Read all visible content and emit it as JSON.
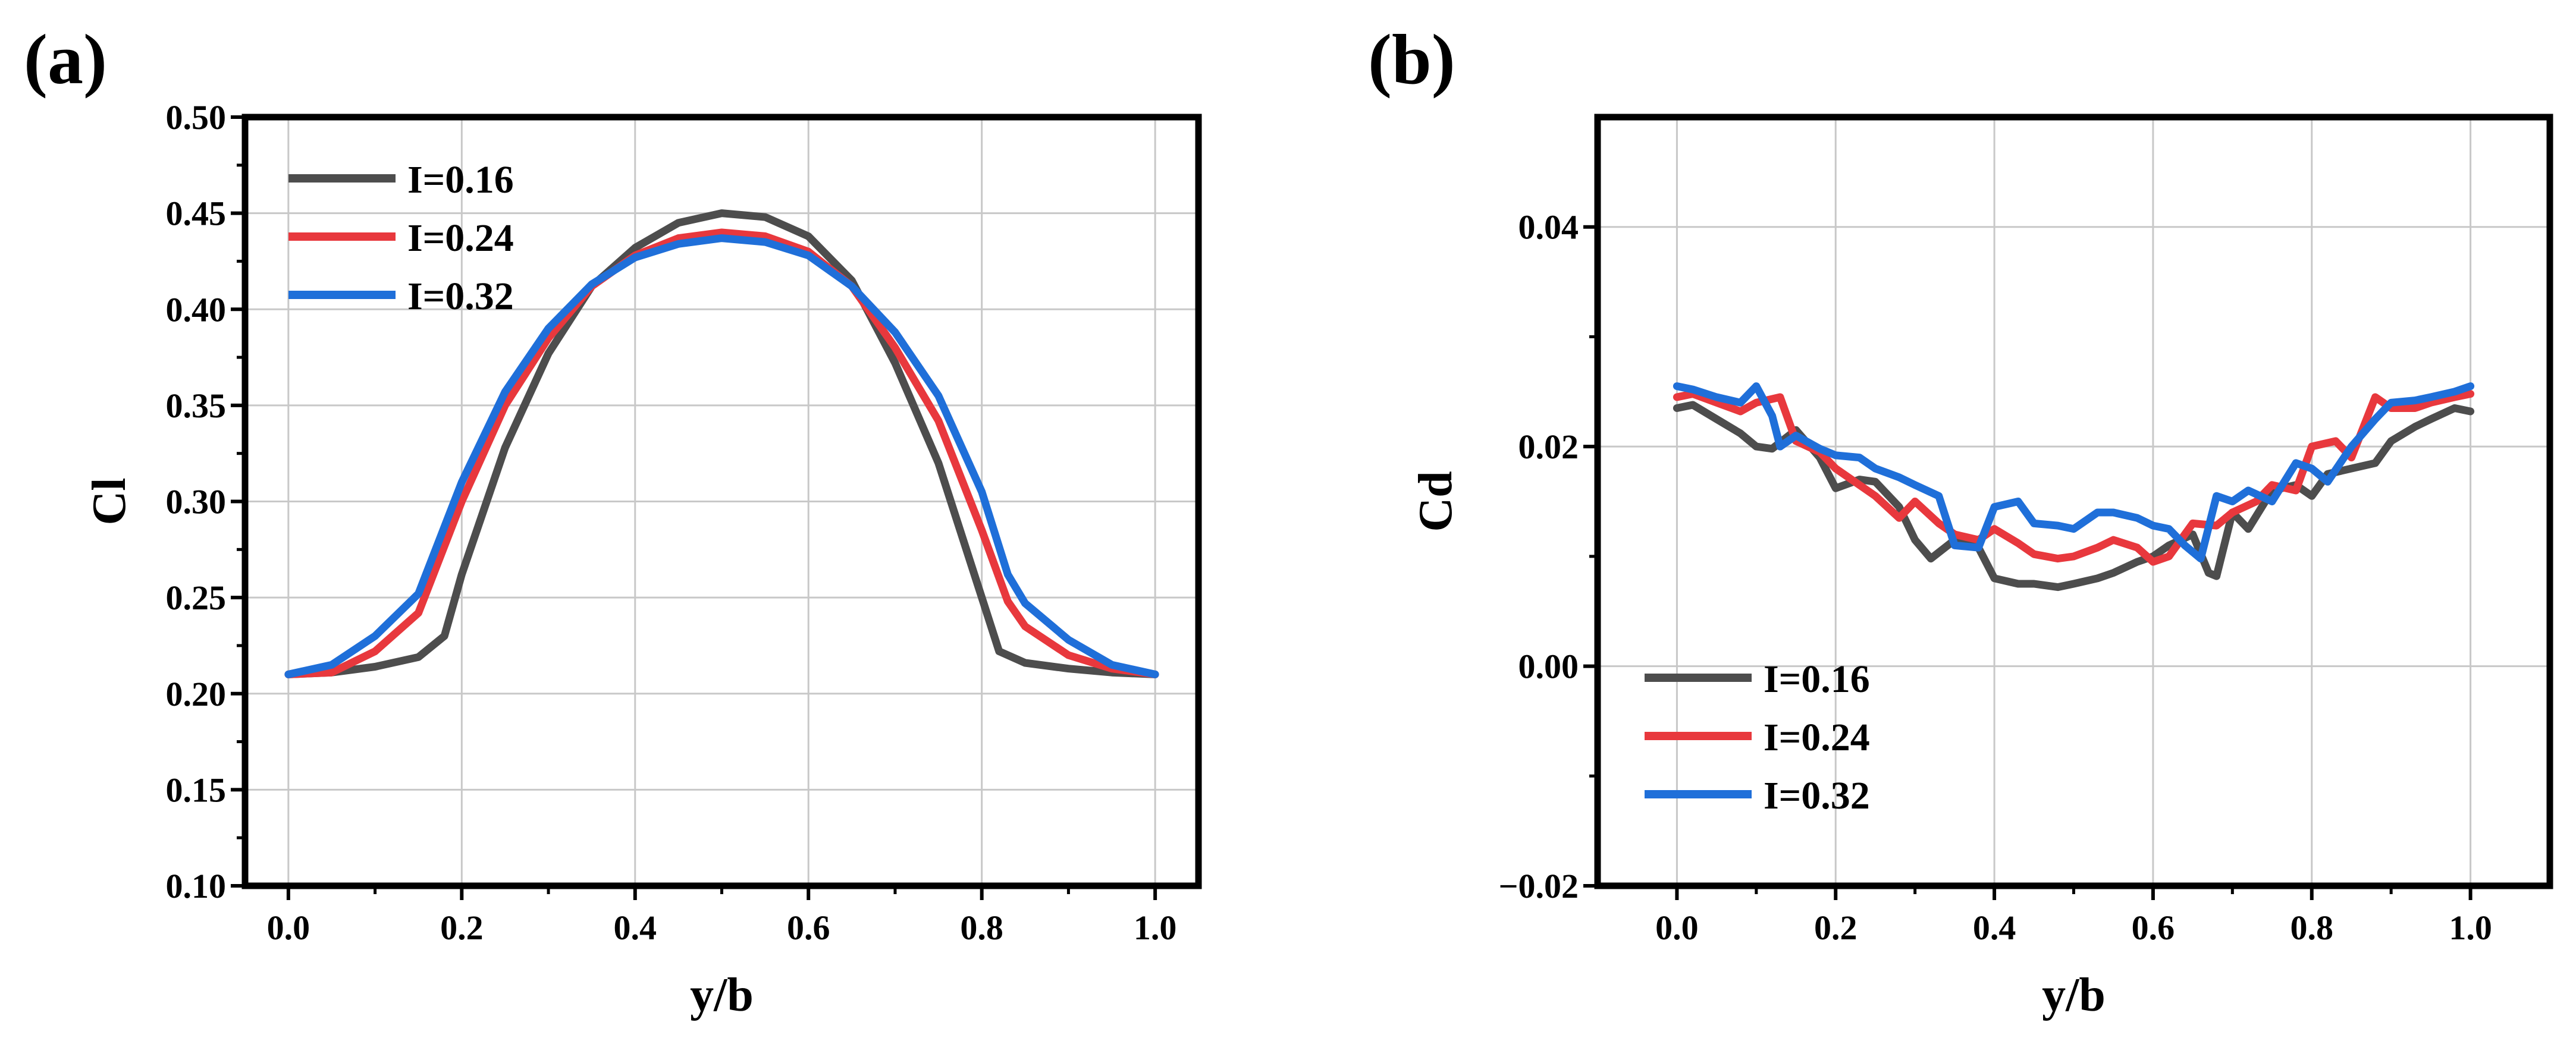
{
  "chart_data": [
    {
      "type": "line",
      "panel_label": "(a)",
      "xlabel": "y/b",
      "ylabel": "Cl",
      "xlim": [
        -0.05,
        1.05
      ],
      "ylim": [
        0.1,
        0.5
      ],
      "xticks": [
        0.0,
        0.2,
        0.4,
        0.6,
        0.8,
        1.0
      ],
      "xtick_labels": [
        "0.0",
        "0.2",
        "0.4",
        "0.6",
        "0.8",
        "1.0"
      ],
      "yticks": [
        0.1,
        0.15,
        0.2,
        0.25,
        0.3,
        0.35,
        0.4,
        0.45,
        0.5
      ],
      "ytick_labels": [
        "0.10",
        "0.15",
        "0.20",
        "0.25",
        "0.30",
        "0.35",
        "0.40",
        "0.45",
        "0.50"
      ],
      "grid": true,
      "legend_position": "top-left",
      "series": [
        {
          "name": "I=0.16",
          "color": "#4d4d4d",
          "x": [
            0.0,
            0.05,
            0.1,
            0.15,
            0.18,
            0.2,
            0.25,
            0.3,
            0.35,
            0.4,
            0.45,
            0.5,
            0.55,
            0.6,
            0.65,
            0.7,
            0.75,
            0.8,
            0.82,
            0.85,
            0.9,
            0.95,
            1.0
          ],
          "y": [
            0.21,
            0.211,
            0.214,
            0.219,
            0.23,
            0.262,
            0.328,
            0.377,
            0.412,
            0.432,
            0.445,
            0.45,
            0.448,
            0.438,
            0.415,
            0.372,
            0.32,
            0.25,
            0.222,
            0.216,
            0.213,
            0.211,
            0.21
          ]
        },
        {
          "name": "I=0.24",
          "color": "#e8383d",
          "x": [
            0.0,
            0.05,
            0.1,
            0.15,
            0.2,
            0.25,
            0.3,
            0.35,
            0.4,
            0.45,
            0.5,
            0.55,
            0.6,
            0.65,
            0.7,
            0.75,
            0.8,
            0.83,
            0.85,
            0.9,
            0.95,
            1.0
          ],
          "y": [
            0.21,
            0.211,
            0.222,
            0.242,
            0.3,
            0.35,
            0.385,
            0.412,
            0.428,
            0.437,
            0.44,
            0.438,
            0.43,
            0.412,
            0.38,
            0.342,
            0.285,
            0.248,
            0.235,
            0.22,
            0.213,
            0.21
          ]
        },
        {
          "name": "I=0.32",
          "color": "#1f6fd9",
          "x": [
            0.0,
            0.05,
            0.1,
            0.15,
            0.2,
            0.25,
            0.3,
            0.35,
            0.4,
            0.45,
            0.5,
            0.55,
            0.6,
            0.65,
            0.7,
            0.75,
            0.8,
            0.83,
            0.85,
            0.9,
            0.95,
            1.0
          ],
          "y": [
            0.21,
            0.215,
            0.23,
            0.252,
            0.31,
            0.357,
            0.39,
            0.413,
            0.427,
            0.434,
            0.437,
            0.435,
            0.428,
            0.412,
            0.388,
            0.355,
            0.305,
            0.262,
            0.247,
            0.228,
            0.215,
            0.21
          ]
        }
      ]
    },
    {
      "type": "line",
      "panel_label": "(b)",
      "xlabel": "y/b",
      "ylabel": "Cd",
      "xlim": [
        -0.1,
        1.1
      ],
      "ylim": [
        -0.02,
        0.05
      ],
      "xticks": [
        0.0,
        0.2,
        0.4,
        0.6,
        0.8,
        1.0
      ],
      "xtick_labels": [
        "0.0",
        "0.2",
        "0.4",
        "0.6",
        "0.8",
        "1.0"
      ],
      "yticks": [
        -0.02,
        0.0,
        0.02,
        0.04
      ],
      "ytick_labels": [
        "−0.02",
        "0.00",
        "0.02",
        "0.04"
      ],
      "grid": true,
      "legend_position": "bottom-left",
      "series": [
        {
          "name": "I=0.16",
          "color": "#4d4d4d",
          "x": [
            0.0,
            0.02,
            0.05,
            0.08,
            0.1,
            0.12,
            0.15,
            0.18,
            0.2,
            0.23,
            0.25,
            0.28,
            0.3,
            0.32,
            0.35,
            0.38,
            0.4,
            0.43,
            0.45,
            0.48,
            0.5,
            0.53,
            0.55,
            0.58,
            0.6,
            0.62,
            0.65,
            0.67,
            0.68,
            0.7,
            0.72,
            0.75,
            0.78,
            0.8,
            0.82,
            0.85,
            0.88,
            0.9,
            0.93,
            0.95,
            0.98,
            1.0
          ],
          "y": [
            0.0235,
            0.0238,
            0.0225,
            0.0212,
            0.02,
            0.0198,
            0.0215,
            0.019,
            0.0162,
            0.017,
            0.0168,
            0.0145,
            0.0115,
            0.0098,
            0.0115,
            0.0108,
            0.008,
            0.0075,
            0.0075,
            0.0072,
            0.0075,
            0.008,
            0.0085,
            0.0095,
            0.01,
            0.011,
            0.012,
            0.0085,
            0.0082,
            0.014,
            0.0125,
            0.016,
            0.0165,
            0.0155,
            0.0175,
            0.018,
            0.0185,
            0.0205,
            0.0218,
            0.0225,
            0.0235,
            0.0232
          ]
        },
        {
          "name": "I=0.24",
          "color": "#e8383d",
          "x": [
            0.0,
            0.02,
            0.05,
            0.08,
            0.1,
            0.13,
            0.15,
            0.18,
            0.2,
            0.23,
            0.25,
            0.28,
            0.3,
            0.33,
            0.35,
            0.38,
            0.4,
            0.43,
            0.45,
            0.48,
            0.5,
            0.53,
            0.55,
            0.58,
            0.6,
            0.62,
            0.65,
            0.68,
            0.7,
            0.73,
            0.75,
            0.78,
            0.8,
            0.83,
            0.85,
            0.88,
            0.9,
            0.93,
            0.95,
            0.98,
            1.0
          ],
          "y": [
            0.0245,
            0.0248,
            0.024,
            0.0232,
            0.024,
            0.0245,
            0.0205,
            0.0195,
            0.018,
            0.0165,
            0.0155,
            0.0135,
            0.015,
            0.013,
            0.012,
            0.0115,
            0.0125,
            0.0112,
            0.0102,
            0.0098,
            0.01,
            0.0108,
            0.0115,
            0.0108,
            0.0095,
            0.01,
            0.013,
            0.0128,
            0.014,
            0.015,
            0.0165,
            0.016,
            0.02,
            0.0205,
            0.019,
            0.0245,
            0.0235,
            0.0235,
            0.024,
            0.0245,
            0.0248
          ]
        },
        {
          "name": "I=0.32",
          "color": "#1f6fd9",
          "x": [
            0.0,
            0.02,
            0.05,
            0.08,
            0.1,
            0.12,
            0.13,
            0.15,
            0.18,
            0.2,
            0.23,
            0.25,
            0.28,
            0.3,
            0.33,
            0.35,
            0.38,
            0.4,
            0.43,
            0.45,
            0.48,
            0.5,
            0.53,
            0.55,
            0.58,
            0.6,
            0.62,
            0.64,
            0.66,
            0.68,
            0.7,
            0.72,
            0.75,
            0.78,
            0.8,
            0.82,
            0.85,
            0.88,
            0.9,
            0.93,
            0.95,
            0.98,
            1.0
          ],
          "y": [
            0.0255,
            0.0252,
            0.0245,
            0.024,
            0.0255,
            0.0228,
            0.02,
            0.021,
            0.0198,
            0.0192,
            0.019,
            0.018,
            0.0172,
            0.0165,
            0.0155,
            0.011,
            0.0108,
            0.0145,
            0.015,
            0.013,
            0.0128,
            0.0125,
            0.014,
            0.014,
            0.0135,
            0.0128,
            0.0125,
            0.011,
            0.0098,
            0.0155,
            0.015,
            0.016,
            0.015,
            0.0185,
            0.018,
            0.0168,
            0.02,
            0.0225,
            0.024,
            0.0242,
            0.0245,
            0.025,
            0.0255
          ]
        }
      ]
    }
  ]
}
